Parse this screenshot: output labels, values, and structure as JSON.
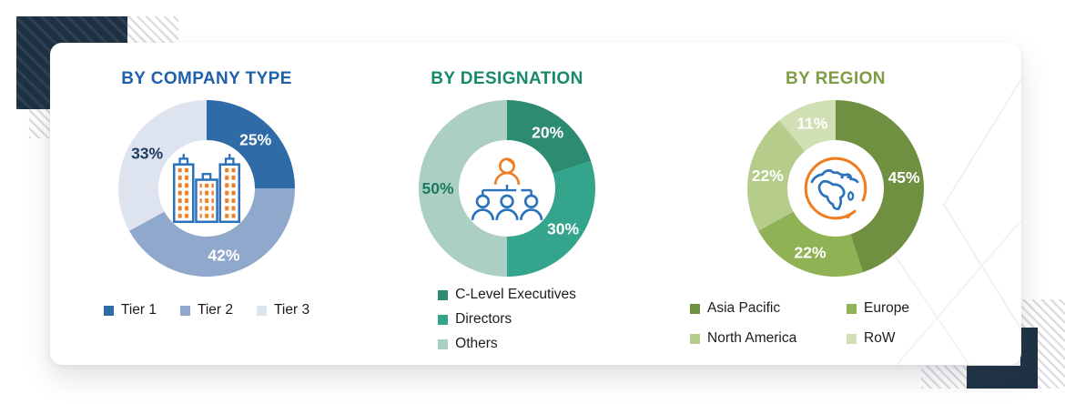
{
  "accents": {
    "navy": "#1e3144",
    "hatch_gray": "#d9dadf",
    "icon_blue": "#2a72bb",
    "icon_orange": "#ef7e22"
  },
  "chart_data": [
    {
      "type": "donut",
      "title": "BY COMPANY TYPE",
      "title_color": "#1e61a9",
      "center_icon": "buildings-icon",
      "legend_layout": "row",
      "start_angle": 0,
      "direction": "clockwise",
      "segments": [
        {
          "label": "Tier 1",
          "value": 25,
          "display": "25%",
          "color": "#2f6ba7",
          "label_color": "#ffffff"
        },
        {
          "label": "Tier 2",
          "value": 42,
          "display": "42%",
          "color": "#90a8cc",
          "label_color": "#ffffff"
        },
        {
          "label": "Tier 3",
          "value": 33,
          "display": "33%",
          "color": "#dde3ef",
          "label_color": "#1d3a5f"
        }
      ]
    },
    {
      "type": "donut",
      "title": "BY DESIGNATION",
      "title_color": "#178a6c",
      "center_icon": "org-chart-icon",
      "legend_layout": "column",
      "start_angle": 0,
      "direction": "clockwise",
      "segments": [
        {
          "label": "C-Level Executives",
          "value": 20,
          "display": "20%",
          "color": "#2d8b71",
          "label_color": "#ffffff"
        },
        {
          "label": "Directors",
          "value": 30,
          "display": "30%",
          "color": "#35a48c",
          "label_color": "#ffffff"
        },
        {
          "label": "Others",
          "value": 50,
          "display": "50%",
          "color": "#abd0c3",
          "label_color": "#1d7a60"
        }
      ]
    },
    {
      "type": "donut",
      "title": "BY REGION",
      "title_color": "#7f9d43",
      "center_icon": "globe-icon",
      "legend_layout": "grid",
      "start_angle": 0,
      "direction": "clockwise",
      "segments": [
        {
          "label": "Asia Pacific",
          "value": 45,
          "display": "45%",
          "color": "#6e9040",
          "label_color": "#ffffff"
        },
        {
          "label": "Europe",
          "value": 22,
          "display": "22%",
          "color": "#8fb254",
          "label_color": "#ffffff"
        },
        {
          "label": "North America",
          "value": 22,
          "display": "22%",
          "color": "#b5cc8b",
          "label_color": "#ffffff"
        },
        {
          "label": "RoW",
          "value": 11,
          "display": "11%",
          "color": "#d1dfb4",
          "label_color": "#ffffff"
        }
      ]
    }
  ]
}
